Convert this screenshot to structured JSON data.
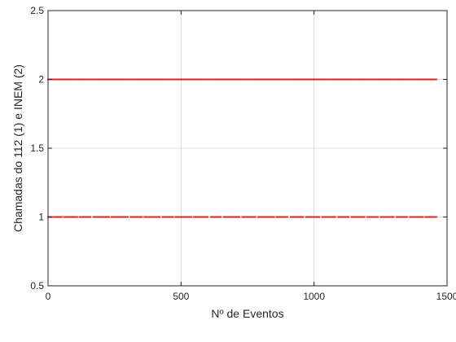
{
  "chart_data": {
    "type": "scatter",
    "title": "",
    "xlabel": "Nº de Eventos",
    "ylabel": "Chamadas do 112 (1) e INEM (2)",
    "xlim": [
      0,
      1500
    ],
    "ylim": [
      0.5,
      2.5
    ],
    "xticks": [
      0,
      500,
      1000,
      1500
    ],
    "yticks": [
      0.5,
      1,
      1.5,
      2,
      2.5
    ],
    "xtick_labels": [
      "0",
      "500",
      "1000",
      "1500"
    ],
    "ytick_labels": [
      "0.5",
      "1",
      "1.5",
      "2",
      "2.5"
    ],
    "grid": true,
    "marker_color": "#e02020",
    "series": [
      {
        "y": 2,
        "x_ranges": [
          [
            0,
            1460
          ]
        ]
      },
      {
        "y": 1,
        "x_ranges": [
          [
            0,
            18
          ],
          [
            24,
            52
          ],
          [
            60,
            110
          ],
          [
            118,
            160
          ],
          [
            170,
            230
          ],
          [
            238,
            300
          ],
          [
            310,
            355
          ],
          [
            362,
            420
          ],
          [
            430,
            470
          ],
          [
            478,
            540
          ],
          [
            548,
            600
          ],
          [
            612,
            650
          ],
          [
            660,
            720
          ],
          [
            730,
            780
          ],
          [
            790,
            850
          ],
          [
            858,
            900
          ],
          [
            912,
            960
          ],
          [
            970,
            1020
          ],
          [
            1030,
            1080
          ],
          [
            1090,
            1130
          ],
          [
            1140,
            1190
          ],
          [
            1200,
            1240
          ],
          [
            1250,
            1300
          ],
          [
            1310,
            1350
          ],
          [
            1360,
            1410
          ],
          [
            1418,
            1460
          ]
        ]
      }
    ]
  }
}
